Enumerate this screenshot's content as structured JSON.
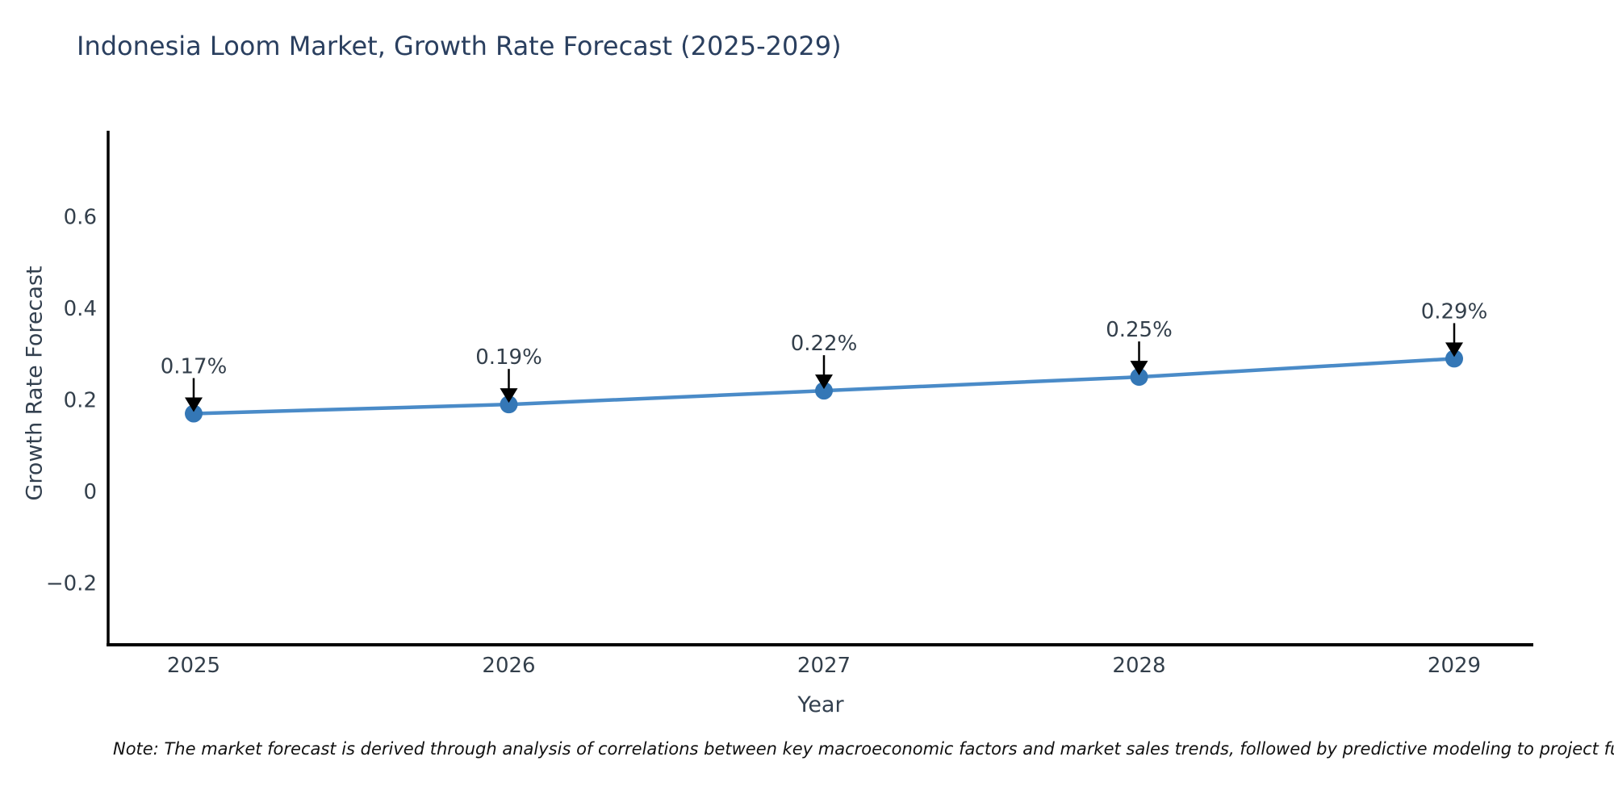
{
  "title": "Indonesia Loom Market, Growth Rate Forecast (2025-2029)",
  "note": "Note: The market forecast is derived through analysis of correlations between key macroeconomic factors and market sales trends, followed by predictive modeling to project future sales.",
  "chart_data": {
    "type": "line",
    "title": "Indonesia Loom Market, Growth Rate Forecast (2025-2029)",
    "xlabel": "Year",
    "ylabel": "Growth Rate Forecast",
    "x": [
      2025,
      2026,
      2027,
      2028,
      2029
    ],
    "values": [
      0.17,
      0.19,
      0.22,
      0.25,
      0.29
    ],
    "point_labels": [
      "0.17%",
      "0.19%",
      "0.22%",
      "0.25%",
      "0.29%"
    ],
    "xtick_labels": [
      "2025",
      "2026",
      "2027",
      "2028",
      "2029"
    ],
    "ytick_values": [
      0.6,
      0.4,
      0.2,
      0,
      -0.2
    ],
    "ytick_labels": [
      "0.6",
      "0.4",
      "0.2",
      "0",
      "−0.2"
    ],
    "xlim": [
      2024.73,
      2029.25
    ],
    "ylim": [
      -0.34,
      0.79
    ],
    "grid": false,
    "legend_position": "none",
    "annotation_style": "down-arrow",
    "colors": {
      "line": "#4a8bc8",
      "marker": "#3477b6",
      "arrow": "#000000",
      "axis": "#000000",
      "tick_text": "#333f4b",
      "title_text": "#2a3f5f"
    }
  }
}
